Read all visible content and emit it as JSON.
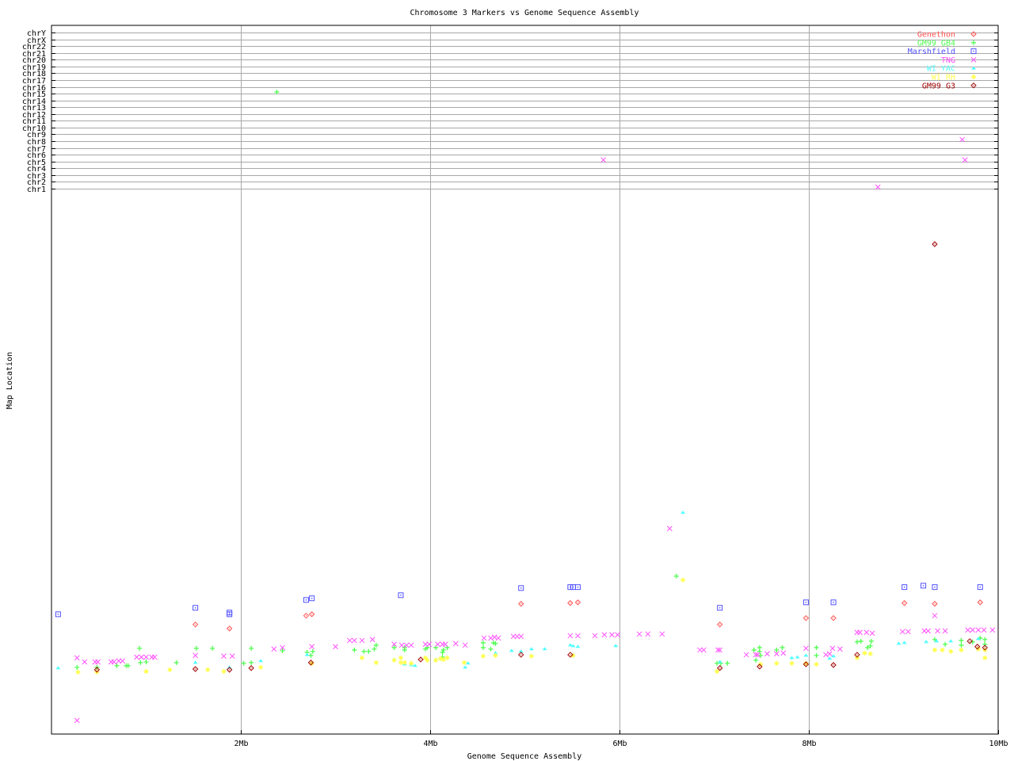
{
  "chart_data": {
    "type": "scatter",
    "title": "Chromosome 3 Markers vs Genome Sequence Assembly",
    "xlabel": "Genome Sequence Assembly",
    "ylabel": "Map Location",
    "xlim": [
      0,
      10
    ],
    "x_ticks": [
      {
        "value": 2,
        "label": "2Mb"
      },
      {
        "value": 4,
        "label": "4Mb"
      },
      {
        "value": 6,
        "label": "6Mb"
      },
      {
        "value": 8,
        "label": "8Mb"
      },
      {
        "value": 10,
        "label": "10Mb"
      }
    ],
    "chr3_map_location_range": [
      0,
      229
    ],
    "chromosome_rows": [
      "chrY",
      "chrX",
      "chr22",
      "chr21",
      "chr20",
      "chr19",
      "chr18",
      "chr17",
      "chr16",
      "chr15",
      "chr14",
      "chr13",
      "chr12",
      "chr11",
      "chr10",
      "chr9",
      "chr8",
      "chr7",
      "chr6",
      "chr5",
      "chr4",
      "chr3",
      "chr2",
      "chr1"
    ],
    "grid": {
      "vertical": true,
      "chromosome_rows": true
    },
    "legend_position": "top-right",
    "series": [
      {
        "name": "Genethon",
        "color": "#ff5050",
        "marker": "diamond-open",
        "points": [
          [
            1.52,
            46
          ],
          [
            1.88,
            44.3
          ],
          [
            2.69,
            49.7
          ],
          [
            2.75,
            50.3
          ],
          [
            4.96,
            54.7
          ],
          [
            5.48,
            55
          ],
          [
            5.56,
            55.3
          ],
          [
            7.06,
            46
          ],
          [
            7.97,
            48.7
          ],
          [
            8.26,
            48.7
          ],
          [
            9.01,
            55
          ],
          [
            9.33,
            54.7
          ],
          [
            9.81,
            55.3
          ]
        ],
        "other_chr_points": []
      },
      {
        "name": "GM99 GB4",
        "color": "#50ff50",
        "marker": "plus",
        "points": [
          [
            0.27,
            28
          ],
          [
            0.48,
            28
          ],
          [
            0.69,
            28.7
          ],
          [
            0.79,
            28.7
          ],
          [
            0.81,
            28.7
          ],
          [
            0.93,
            36
          ],
          [
            0.94,
            30
          ],
          [
            1.0,
            30.3
          ],
          [
            1.32,
            30
          ],
          [
            1.53,
            36
          ],
          [
            1.7,
            36
          ],
          [
            2.03,
            29.7
          ],
          [
            2.11,
            36
          ],
          [
            2.11,
            30
          ],
          [
            2.44,
            35
          ],
          [
            2.7,
            34.3
          ],
          [
            2.76,
            34.7
          ],
          [
            2.74,
            33
          ],
          [
            3.2,
            35.3
          ],
          [
            3.3,
            34.7
          ],
          [
            3.35,
            34.7
          ],
          [
            3.41,
            35.7
          ],
          [
            3.43,
            37.3
          ],
          [
            3.62,
            36.3
          ],
          [
            3.73,
            36.3
          ],
          [
            3.73,
            35.3
          ],
          [
            3.95,
            35.7
          ],
          [
            3.97,
            36.3
          ],
          [
            4.06,
            36.3
          ],
          [
            4.13,
            34.3
          ],
          [
            4.14,
            35.3
          ],
          [
            4.18,
            36.3
          ],
          [
            4.13,
            32.3
          ],
          [
            4.56,
            38.3
          ],
          [
            4.56,
            36.3
          ],
          [
            4.64,
            35.7
          ],
          [
            4.67,
            38.3
          ],
          [
            4.69,
            38
          ],
          [
            6.6,
            66.3
          ],
          [
            7.03,
            29.7
          ],
          [
            7.07,
            29.7
          ],
          [
            7.14,
            29.7
          ],
          [
            7.42,
            35.3
          ],
          [
            7.48,
            36.3
          ],
          [
            7.48,
            34.7
          ],
          [
            7.49,
            33
          ],
          [
            7.44,
            31
          ],
          [
            7.66,
            35.3
          ],
          [
            7.72,
            36.3
          ],
          [
            8.08,
            36.3
          ],
          [
            8.08,
            33
          ],
          [
            8.51,
            38.7
          ],
          [
            8.55,
            39
          ],
          [
            8.66,
            39
          ],
          [
            8.62,
            36.3
          ],
          [
            8.65,
            37
          ],
          [
            9.33,
            39.7
          ],
          [
            9.44,
            37.7
          ],
          [
            9.61,
            39.3
          ],
          [
            9.61,
            37.3
          ],
          [
            9.73,
            38.7
          ],
          [
            9.81,
            40.3
          ],
          [
            9.86,
            39.7
          ],
          [
            9.86,
            37.7
          ]
        ],
        "other_chr_points": [
          {
            "x": 2.38,
            "chr": "chr15"
          }
        ]
      },
      {
        "name": "Marshfield",
        "color": "#5050ff",
        "marker": "square-dot",
        "points": [
          [
            0.07,
            50.3
          ],
          [
            1.52,
            53
          ],
          [
            1.88,
            51
          ],
          [
            1.88,
            50.3
          ],
          [
            2.69,
            56.3
          ],
          [
            2.75,
            57
          ],
          [
            3.69,
            58.3
          ],
          [
            4.96,
            61.3
          ],
          [
            5.48,
            61.7
          ],
          [
            5.51,
            61.7
          ],
          [
            5.56,
            61.7
          ],
          [
            7.06,
            53
          ],
          [
            7.97,
            55.3
          ],
          [
            8.26,
            55.3
          ],
          [
            9.01,
            61.7
          ],
          [
            9.21,
            62.3
          ],
          [
            9.33,
            61.7
          ],
          [
            9.81,
            61.7
          ]
        ],
        "other_chr_points": []
      },
      {
        "name": "TNG",
        "color": "#ff50ff",
        "marker": "x",
        "points": [
          [
            0.27,
            32
          ],
          [
            0.27,
            5.7
          ],
          [
            0.35,
            30.3
          ],
          [
            0.46,
            30.3
          ],
          [
            0.49,
            30.3
          ],
          [
            0.63,
            30.3
          ],
          [
            0.66,
            30.3
          ],
          [
            0.71,
            30.7
          ],
          [
            0.75,
            30.7
          ],
          [
            0.9,
            32.3
          ],
          [
            0.95,
            32.3
          ],
          [
            1.0,
            32.3
          ],
          [
            1.06,
            32.3
          ],
          [
            1.09,
            32.3
          ],
          [
            1.52,
            33
          ],
          [
            1.82,
            32.7
          ],
          [
            1.91,
            32.7
          ],
          [
            2.35,
            35.7
          ],
          [
            2.44,
            36.3
          ],
          [
            2.75,
            36.7
          ],
          [
            3.0,
            36.7
          ],
          [
            3.15,
            39.3
          ],
          [
            3.2,
            39.3
          ],
          [
            3.28,
            39.3
          ],
          [
            3.39,
            39.7
          ],
          [
            3.62,
            37.7
          ],
          [
            3.7,
            37.3
          ],
          [
            3.75,
            37.3
          ],
          [
            3.8,
            37.3
          ],
          [
            3.95,
            37.7
          ],
          [
            3.99,
            37.7
          ],
          [
            4.08,
            37.7
          ],
          [
            4.13,
            37.7
          ],
          [
            4.16,
            37.7
          ],
          [
            4.27,
            38
          ],
          [
            4.37,
            37.3
          ],
          [
            4.57,
            40.3
          ],
          [
            4.64,
            40.3
          ],
          [
            4.68,
            40.7
          ],
          [
            4.72,
            40.3
          ],
          [
            4.88,
            41
          ],
          [
            4.92,
            41
          ],
          [
            4.96,
            41
          ],
          [
            5.48,
            41.3
          ],
          [
            5.56,
            41.3
          ],
          [
            5.74,
            41.3
          ],
          [
            5.84,
            41.7
          ],
          [
            5.92,
            41.7
          ],
          [
            5.98,
            41.7
          ],
          [
            6.21,
            42
          ],
          [
            6.3,
            42
          ],
          [
            6.45,
            42
          ],
          [
            6.53,
            86.3
          ],
          [
            6.85,
            35.3
          ],
          [
            6.89,
            35.3
          ],
          [
            7.04,
            35.3
          ],
          [
            7.06,
            35.3
          ],
          [
            7.34,
            33.3
          ],
          [
            7.44,
            33.3
          ],
          [
            7.46,
            33.3
          ],
          [
            7.56,
            33.7
          ],
          [
            7.66,
            33.7
          ],
          [
            7.73,
            34
          ],
          [
            7.97,
            36
          ],
          [
            8.18,
            33.3
          ],
          [
            8.22,
            33.7
          ],
          [
            8.25,
            36
          ],
          [
            8.33,
            35.7
          ],
          [
            8.51,
            42.7
          ],
          [
            8.54,
            42.7
          ],
          [
            8.61,
            42.7
          ],
          [
            8.67,
            42.3
          ],
          [
            8.99,
            43
          ],
          [
            9.05,
            43
          ],
          [
            9.22,
            43.3
          ],
          [
            9.26,
            43.3
          ],
          [
            9.36,
            43.3
          ],
          [
            9.44,
            43.3
          ],
          [
            9.33,
            49.7
          ],
          [
            9.68,
            43.7
          ],
          [
            9.73,
            43.7
          ],
          [
            9.79,
            43.7
          ],
          [
            9.85,
            43.7
          ],
          [
            9.94,
            43.7
          ]
        ],
        "other_chr_points": [
          {
            "x": 5.83,
            "chr": "chr5"
          },
          {
            "x": 9.62,
            "chr": "chr8"
          },
          {
            "x": 9.65,
            "chr": "chr5"
          },
          {
            "x": 8.73,
            "chr": "chr1"
          }
        ]
      },
      {
        "name": "WI YAC",
        "color": "#50ffff",
        "marker": "triangle",
        "points": [
          [
            0.07,
            27.7
          ],
          [
            1.52,
            30
          ],
          [
            1.88,
            28
          ],
          [
            2.21,
            30.7
          ],
          [
            2.7,
            33.3
          ],
          [
            3.62,
            31.3
          ],
          [
            3.73,
            29.3
          ],
          [
            3.8,
            29
          ],
          [
            3.84,
            28.7
          ],
          [
            3.97,
            31.3
          ],
          [
            4.06,
            31.3
          ],
          [
            4.37,
            28
          ],
          [
            4.4,
            29.7
          ],
          [
            4.69,
            34
          ],
          [
            4.86,
            35
          ],
          [
            4.96,
            34.7
          ],
          [
            5.07,
            35.7
          ],
          [
            5.21,
            35.7
          ],
          [
            5.48,
            37.3
          ],
          [
            5.51,
            37
          ],
          [
            5.56,
            36.7
          ],
          [
            5.96,
            37
          ],
          [
            6.67,
            93
          ],
          [
            7.06,
            30.3
          ],
          [
            7.82,
            32
          ],
          [
            7.88,
            32.3
          ],
          [
            7.97,
            33
          ],
          [
            8.22,
            31.7
          ],
          [
            8.26,
            32.7
          ],
          [
            8.95,
            38
          ],
          [
            9.01,
            38.3
          ],
          [
            9.24,
            38.7
          ],
          [
            9.35,
            39
          ],
          [
            9.5,
            39
          ],
          [
            9.79,
            40
          ]
        ],
        "other_chr_points": []
      },
      {
        "name": "WI RH",
        "color": "#ffff50",
        "marker": "star",
        "points": [
          [
            0.28,
            26
          ],
          [
            0.48,
            26
          ],
          [
            1.0,
            26.3
          ],
          [
            1.25,
            27
          ],
          [
            1.65,
            27
          ],
          [
            1.82,
            26.3
          ],
          [
            2.21,
            28
          ],
          [
            2.75,
            29.7
          ],
          [
            3.28,
            32
          ],
          [
            3.43,
            30
          ],
          [
            3.62,
            31
          ],
          [
            3.69,
            32
          ],
          [
            3.69,
            30
          ],
          [
            3.73,
            30
          ],
          [
            3.8,
            29.7
          ],
          [
            3.95,
            32
          ],
          [
            3.97,
            31
          ],
          [
            4.06,
            31
          ],
          [
            4.11,
            31.7
          ],
          [
            4.14,
            31.3
          ],
          [
            4.18,
            32
          ],
          [
            4.36,
            30
          ],
          [
            4.56,
            32.7
          ],
          [
            4.69,
            33
          ],
          [
            5.07,
            32.7
          ],
          [
            5.51,
            33
          ],
          [
            6.67,
            64.7
          ],
          [
            7.03,
            26.3
          ],
          [
            7.49,
            29.3
          ],
          [
            7.66,
            29.7
          ],
          [
            7.82,
            29.7
          ],
          [
            7.97,
            29.7
          ],
          [
            8.08,
            29.3
          ],
          [
            8.51,
            32
          ],
          [
            8.59,
            34
          ],
          [
            8.65,
            33.7
          ],
          [
            9.33,
            35.3
          ],
          [
            9.41,
            35.3
          ],
          [
            9.5,
            34.7
          ],
          [
            9.61,
            35.3
          ],
          [
            9.79,
            35.7
          ],
          [
            9.86,
            35.3
          ],
          [
            9.86,
            32
          ]
        ],
        "other_chr_points": []
      },
      {
        "name": "GM99 G3",
        "color": "#a00000",
        "marker": "diamond-open",
        "points": [
          [
            0.48,
            27
          ],
          [
            1.52,
            27.3
          ],
          [
            1.88,
            27
          ],
          [
            2.11,
            27.7
          ],
          [
            2.74,
            30
          ],
          [
            3.9,
            31.3
          ],
          [
            4.96,
            33.3
          ],
          [
            5.48,
            33.3
          ],
          [
            7.06,
            27.7
          ],
          [
            7.48,
            28.3
          ],
          [
            7.97,
            29.3
          ],
          [
            8.26,
            29
          ],
          [
            8.51,
            33.3
          ],
          [
            9.7,
            39
          ],
          [
            9.78,
            36.7
          ],
          [
            9.86,
            36.3
          ],
          [
            9.33,
            205.7
          ]
        ],
        "other_chr_points": []
      }
    ]
  }
}
